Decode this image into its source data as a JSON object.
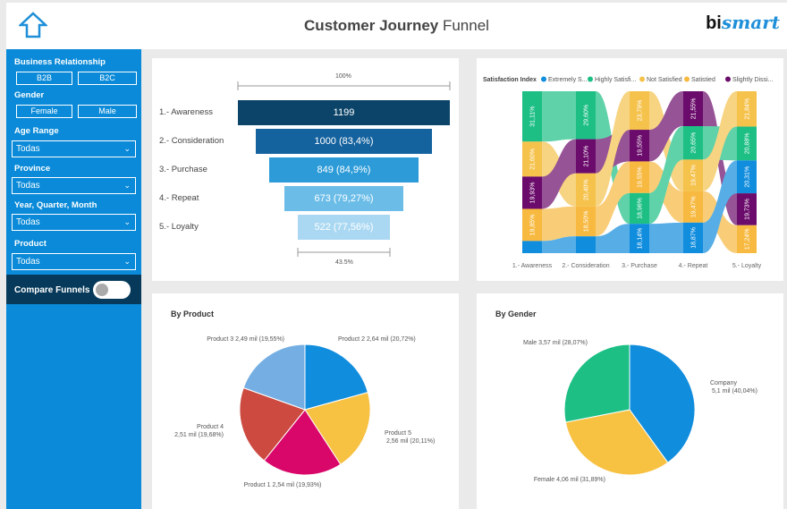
{
  "header": {
    "title_bold": "Customer Journey",
    "title_rest": "Funnel",
    "logo_a": "bi",
    "logo_b": "smart"
  },
  "sidebar": {
    "business_label": "Business Relationship",
    "b2b": "B2B",
    "b2c": "B2C",
    "gender_label": "Gender",
    "female": "Female",
    "male": "Male",
    "age_label": "Age Range",
    "age_value": "Todas",
    "province_label": "Province",
    "province_value": "Todas",
    "date_label": "Year, Quarter, Month",
    "date_value": "Todas",
    "product_label": "Product",
    "product_value": "Todas",
    "compare_label": "Compare Funnels",
    "compare_on": false
  },
  "funnel": {
    "top_pct": "100%",
    "bottom_pct": "43.5%",
    "stages": [
      {
        "label": "1.- Awareness",
        "value": "1199",
        "pct": 100
      },
      {
        "label": "2.- Consideration",
        "value": "1000 (83,4%)",
        "pct": 83.4
      },
      {
        "label": "3.- Purchase",
        "value": "849 (84,9%)",
        "pct": 70.8
      },
      {
        "label": "4.- Repeat",
        "value": "673 (79,27%)",
        "pct": 56.1
      },
      {
        "label": "5.- Loyalty",
        "value": "522 (77,56%)",
        "pct": 43.5
      }
    ]
  },
  "satisfaction": {
    "legend_title": "Satisfaction Index",
    "legend": [
      {
        "key": "ext",
        "name": "Extremely S...",
        "color": "#118dde"
      },
      {
        "key": "high",
        "name": "Highly Satisfi...",
        "color": "#1dbf85"
      },
      {
        "key": "not",
        "name": "Not Satisfied",
        "color": "#f5c24c"
      },
      {
        "key": "sat",
        "name": "Satistied",
        "color": "#f7b940"
      },
      {
        "key": "sli",
        "name": "Slightly Dissi...",
        "color": "#6b0b6b"
      }
    ],
    "stages": [
      "1.- Awareness",
      "2.- Consideration",
      "3.- Purchase",
      "4.- Repeat",
      "5.- Loyalty"
    ],
    "columns": [
      [
        [
          "high",
          31.11
        ],
        [
          "not",
          21.6
        ],
        [
          "sli",
          19.93
        ],
        [
          "sat",
          19.85
        ],
        [
          "ext",
          7.51
        ]
      ],
      [
        [
          "high",
          29.6
        ],
        [
          "sli",
          21.1
        ],
        [
          "not",
          20.4
        ],
        [
          "sat",
          18.5
        ],
        [
          "ext",
          10.4
        ]
      ],
      [
        [
          "not",
          23.79
        ],
        [
          "sli",
          19.55
        ],
        [
          "sat",
          19.55
        ],
        [
          "high",
          18.96
        ],
        [
          "ext",
          18.14
        ]
      ],
      [
        [
          "sli",
          21.55
        ],
        [
          "high",
          20.65
        ],
        [
          "not",
          19.47
        ],
        [
          "sat",
          19.47
        ],
        [
          "ext",
          18.87
        ]
      ],
      [
        [
          "not",
          21.84
        ],
        [
          "high",
          20.88
        ],
        [
          "ext",
          20.31
        ],
        [
          "sli",
          19.73
        ],
        [
          "sat",
          17.24
        ]
      ]
    ]
  },
  "by_product": {
    "title": "By Product",
    "slices": [
      {
        "label": "Product 2 2,64 mil (20,72%)",
        "pct": 20.72,
        "color": "#118dde"
      },
      {
        "label": "Product 5 2,56 mil (20,11%)",
        "pct": 20.11,
        "color": "#f7c142"
      },
      {
        "label": "Product 1 2,54 mil (19,93%)",
        "pct": 19.93,
        "color": "#d9076a"
      },
      {
        "label": "Product 4 2,51 mil (19,68%)",
        "pct": 19.68,
        "color": "#cc4a40"
      },
      {
        "label": "Product 3 2,49 mil (19,55%)",
        "pct": 19.55,
        "color": "#74aee3"
      }
    ]
  },
  "by_gender": {
    "title": "By Gender",
    "slices": [
      {
        "label": "Company 5,1 mil (40,04%)",
        "pct": 40.04,
        "color": "#118dde"
      },
      {
        "label": "Female 4,06 mil (31,89%)",
        "pct": 31.89,
        "color": "#f7c142"
      },
      {
        "label": "Male 3,57 mil (28,07%)",
        "pct": 28.07,
        "color": "#1dbf85"
      }
    ]
  }
}
